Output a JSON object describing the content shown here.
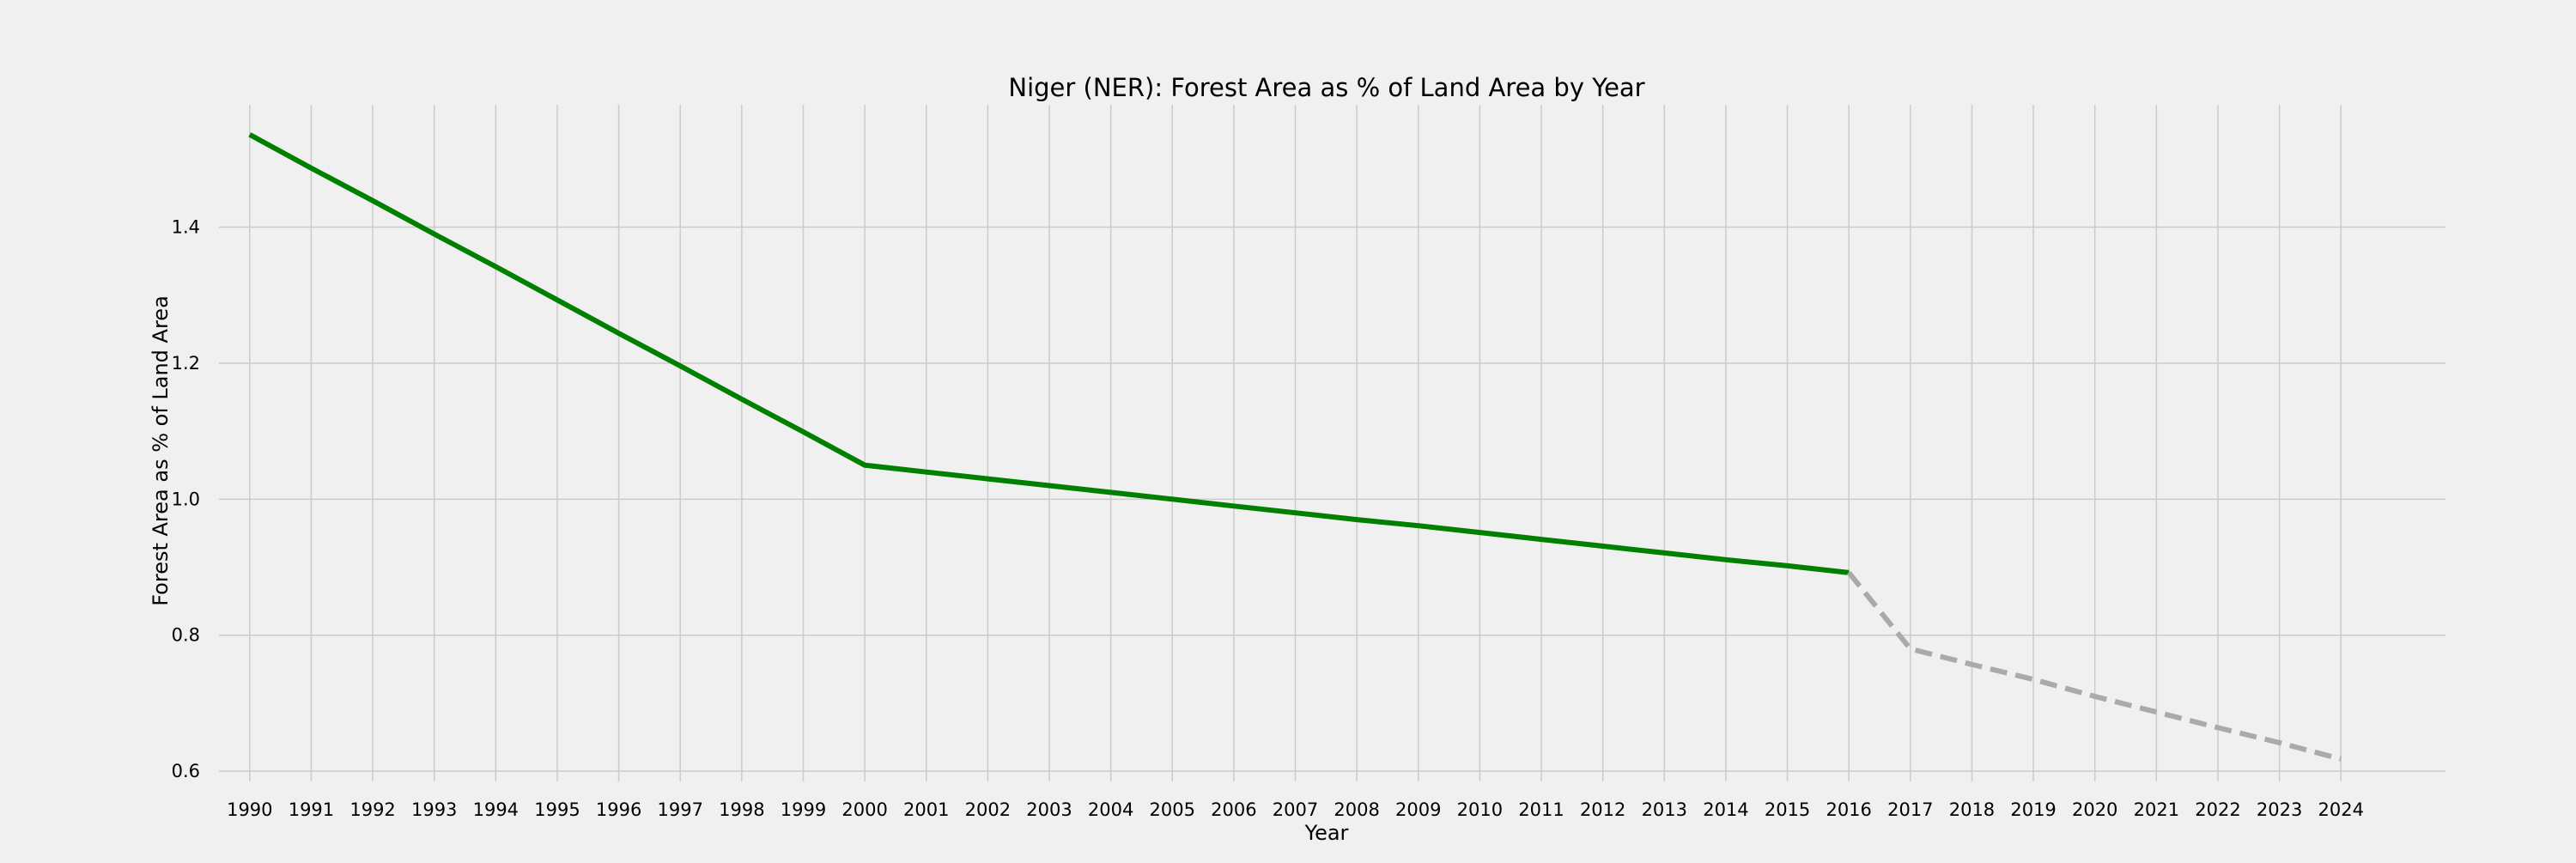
{
  "chart_data": {
    "type": "line",
    "title": "Niger (NER): Forest Area as % of Land Area by Year",
    "xlabel": "Year",
    "ylabel": "Forest Area as % of Land Area",
    "x_ticks": [
      "1990",
      "1991",
      "1992",
      "1993",
      "1994",
      "1995",
      "1996",
      "1997",
      "1998",
      "1999",
      "2000",
      "2001",
      "2002",
      "2003",
      "2004",
      "2005",
      "2006",
      "2007",
      "2008",
      "2009",
      "2010",
      "2011",
      "2012",
      "2013",
      "2014",
      "2015",
      "2016",
      "2017",
      "2018",
      "2019",
      "2020",
      "2021",
      "2022",
      "2023",
      "2024"
    ],
    "y_ticks": [
      "0.6",
      "0.8",
      "1.0",
      "1.2",
      "1.4"
    ],
    "xlim": [
      1989.5,
      2025.7
    ],
    "ylim": [
      0.585,
      1.58
    ],
    "grid": true,
    "series": [
      {
        "style": "solid",
        "color": "#008000",
        "x": [
          1990,
          1991,
          1992,
          1993,
          1994,
          1995,
          1996,
          1997,
          1998,
          1999,
          2000,
          2001,
          2002,
          2003,
          2004,
          2005,
          2006,
          2007,
          2008,
          2009,
          2010,
          2011,
          2012,
          2013,
          2014,
          2015,
          2016
        ],
        "values": [
          1.536,
          1.487,
          1.439,
          1.39,
          1.342,
          1.293,
          1.244,
          1.196,
          1.147,
          1.099,
          1.05,
          1.04,
          1.03,
          1.02,
          1.01,
          1.0,
          0.99,
          0.98,
          0.97,
          0.961,
          0.951,
          0.941,
          0.931,
          0.921,
          0.911,
          0.902,
          0.892
        ]
      },
      {
        "style": "dashed",
        "color": "#aaaaaa",
        "x": [
          2016,
          2017,
          2018,
          2019,
          2020,
          2021,
          2022,
          2023,
          2024
        ],
        "values": [
          0.892,
          0.78,
          0.757,
          0.735,
          0.71,
          0.687,
          0.664,
          0.642,
          0.618
        ]
      }
    ]
  }
}
